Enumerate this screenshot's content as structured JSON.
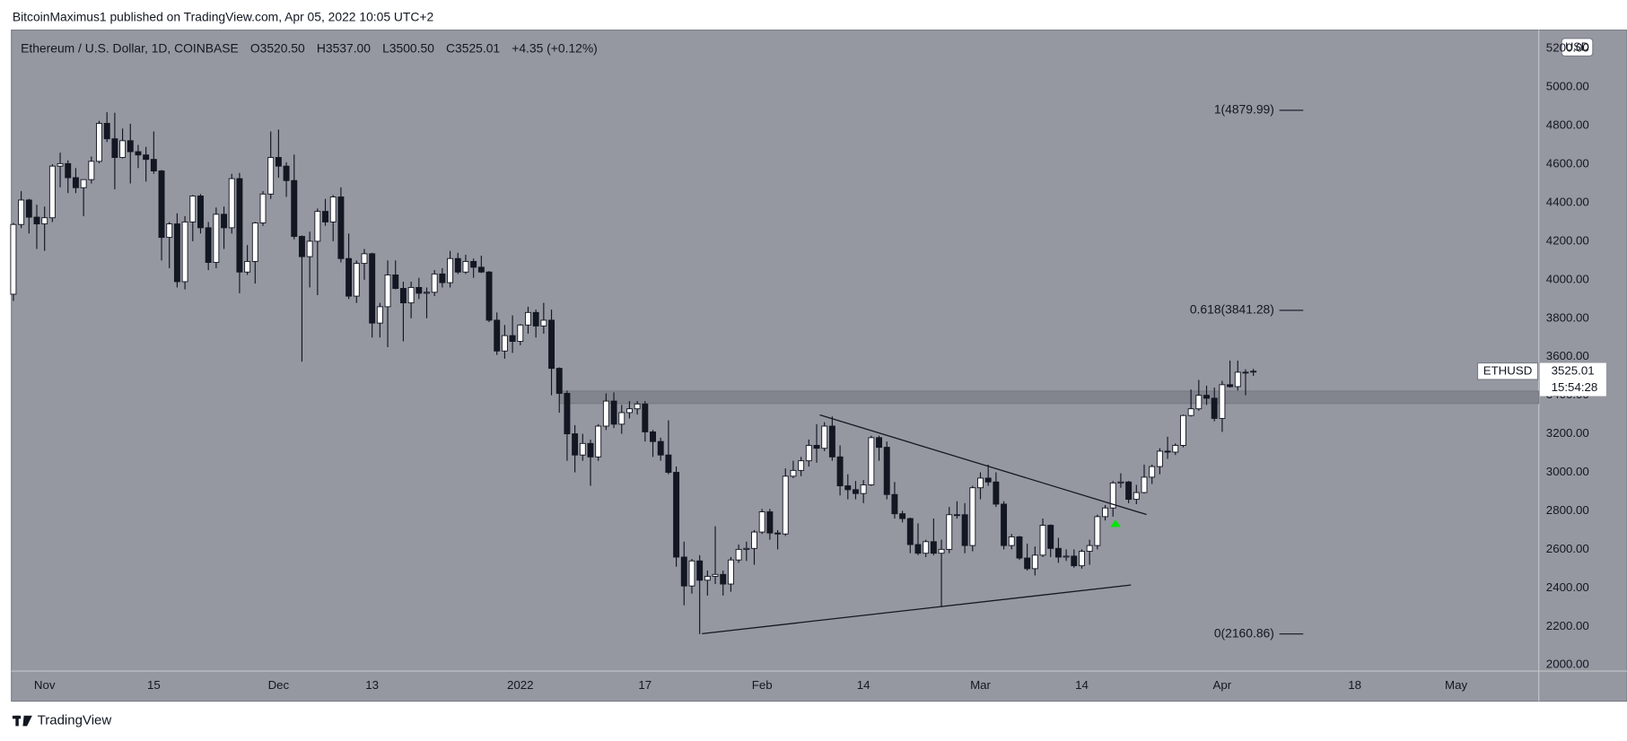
{
  "header": {
    "published": "BitcoinMaximus1 published on TradingView.com, Apr 05, 2022 10:05 UTC+2"
  },
  "footer": {
    "brand": "TradingView"
  },
  "chart_data": {
    "type": "candlestick",
    "legend": {
      "symbol": "Ethereum / U.S. Dollar, 1D, COINBASE",
      "ohlc": [
        {
          "key": "O",
          "value": "3520.50"
        },
        {
          "key": "H",
          "value": "3537.00"
        },
        {
          "key": "L",
          "value": "3500.50"
        },
        {
          "key": "C",
          "value": "3525.01"
        }
      ],
      "change": "+4.35 (+0.12%)"
    },
    "currency": "USD",
    "countdown": "15:54:28",
    "xlim": [
      -4.12,
      191.6
    ],
    "ylim": [
      1968,
      5291
    ],
    "xticks": [
      {
        "value": 0,
        "label": "Nov"
      },
      {
        "value": 14,
        "label": "15"
      },
      {
        "value": 30,
        "label": "Dec"
      },
      {
        "value": 42,
        "label": "13"
      },
      {
        "value": 61,
        "label": "2022"
      },
      {
        "value": 77,
        "label": "17"
      },
      {
        "value": 92,
        "label": "Feb"
      },
      {
        "value": 105,
        "label": "14"
      },
      {
        "value": 120,
        "label": "Mar"
      },
      {
        "value": 133,
        "label": "14"
      },
      {
        "value": 151,
        "label": "Apr"
      },
      {
        "value": 168,
        "label": "18"
      },
      {
        "value": 181,
        "label": "May"
      }
    ],
    "yticks": [
      {
        "value": 2000,
        "label": "2000.00"
      },
      {
        "value": 2200,
        "label": "2200.00"
      },
      {
        "value": 2400,
        "label": "2400.00"
      },
      {
        "value": 2600,
        "label": "2600.00"
      },
      {
        "value": 2800,
        "label": "2800.00"
      },
      {
        "value": 3000,
        "label": "3000.00"
      },
      {
        "value": 3200,
        "label": "3200.00"
      },
      {
        "value": 3400,
        "label": "3400.00"
      },
      {
        "value": 3600,
        "label": "3600.00"
      },
      {
        "value": 3800,
        "label": "3800.00"
      },
      {
        "value": 4000,
        "label": "4000.00"
      },
      {
        "value": 4200,
        "label": "4200.00"
      },
      {
        "value": 4400,
        "label": "4400.00"
      },
      {
        "value": 4600,
        "label": "4600.00"
      },
      {
        "value": 4800,
        "label": "4800.00"
      },
      {
        "value": 5000,
        "label": "5000.00"
      },
      {
        "value": 5200,
        "label": "5200.00"
      }
    ],
    "grid": false,
    "up_color": "#ffffff",
    "down_color": "#131722",
    "series": [
      {
        "name": "ETHUSD",
        "x": [
          -4,
          -3,
          -2,
          -1,
          0,
          1,
          2,
          3,
          4,
          5,
          6,
          7,
          8,
          9,
          10,
          11,
          12,
          13,
          14,
          15,
          16,
          17,
          18,
          19,
          20,
          21,
          22,
          23,
          24,
          25,
          26,
          27,
          28,
          29,
          30,
          31,
          32,
          33,
          34,
          35,
          36,
          37,
          38,
          39,
          40,
          41,
          42,
          43,
          44,
          45,
          46,
          47,
          48,
          49,
          50,
          51,
          52,
          53,
          54,
          55,
          56,
          57,
          58,
          59,
          60,
          61,
          62,
          63,
          64,
          65,
          66,
          67,
          68,
          69,
          70,
          71,
          72,
          73,
          74,
          75,
          76,
          77,
          78,
          79,
          80,
          81,
          82,
          83,
          84,
          85,
          86,
          87,
          88,
          89,
          90,
          91,
          92,
          93,
          94,
          95,
          96,
          97,
          98,
          99,
          100,
          101,
          102,
          103,
          104,
          105,
          106,
          107,
          108,
          109,
          110,
          111,
          112,
          113,
          114,
          115,
          116,
          117,
          118,
          119,
          120,
          121,
          122,
          123,
          124,
          125,
          126,
          127,
          128,
          129,
          130,
          131,
          132,
          133,
          134,
          135,
          136,
          137,
          138,
          139,
          140,
          141,
          142,
          143,
          144,
          145,
          146,
          147,
          148,
          149,
          150,
          151,
          152,
          153,
          154,
          155
        ],
        "open": [
          3925,
          4287,
          4414,
          4325,
          4290,
          4322,
          4590,
          4603,
          4530,
          4478,
          4520,
          4615,
          4812,
          4732,
          4635,
          4722,
          4665,
          4648,
          4625,
          4565,
          4220,
          4290,
          3990,
          4300,
          4435,
          4270,
          4090,
          4340,
          4270,
          4525,
          4040,
          4095,
          4295,
          4445,
          4635,
          4590,
          4515,
          4225,
          4120,
          4200,
          4355,
          4300,
          4430,
          4110,
          3915,
          4085,
          4135,
          3775,
          3860,
          4025,
          3955,
          3880,
          3960,
          3930,
          3935,
          4030,
          3985,
          4110,
          4040,
          4095,
          4065,
          4040,
          3790,
          3630,
          3710,
          3680,
          3765,
          3830,
          3760,
          3790,
          3540,
          3410,
          3200,
          3090,
          3150,
          3080,
          3240,
          3370,
          3250,
          3310,
          3330,
          3355,
          3210,
          3160,
          3090,
          3000,
          2560,
          2410,
          2540,
          2440,
          2460,
          2470,
          2420,
          2545,
          2600,
          2605,
          2690,
          2795,
          2685,
          2680,
          2980,
          3010,
          3060,
          3140,
          3125,
          3240,
          3080,
          2930,
          2910,
          2890,
          2935,
          3180,
          3130,
          2885,
          2785,
          2760,
          2625,
          2580,
          2640,
          2580,
          2600,
          2780,
          2780,
          2620,
          2920,
          2970,
          2950,
          2835,
          2620,
          2665,
          2555,
          2500,
          2570,
          2725,
          2605,
          2560,
          2565,
          2515,
          2590,
          2620,
          2770,
          2815,
          2945,
          2950,
          2860,
          2895,
          2975,
          3030,
          3110,
          3105,
          3140,
          3295,
          3330,
          3400,
          3385,
          3280,
          3455,
          3445,
          3520,
          3520.5
        ],
        "high": [
          4295,
          4460,
          4420,
          4390,
          4380,
          4600,
          4660,
          4620,
          4580,
          4520,
          4640,
          4825,
          4870,
          4867,
          4785,
          4810,
          4700,
          4690,
          4770,
          4570,
          4300,
          4345,
          4330,
          4440,
          4445,
          4300,
          4375,
          4380,
          4550,
          4555,
          4180,
          4300,
          4460,
          4770,
          4780,
          4610,
          4650,
          4230,
          4250,
          4370,
          4420,
          4440,
          4480,
          4240,
          4100,
          4160,
          4140,
          3880,
          4100,
          4100,
          3990,
          3990,
          4010,
          3960,
          4050,
          4060,
          4150,
          4140,
          4130,
          4110,
          4125,
          4045,
          3830,
          3765,
          3815,
          3770,
          3860,
          3845,
          3880,
          3845,
          3545,
          3425,
          3245,
          3200,
          3170,
          3250,
          3410,
          3415,
          3350,
          3370,
          3370,
          3370,
          3220,
          3180,
          3270,
          3030,
          2640,
          2550,
          2570,
          2490,
          2720,
          2490,
          2560,
          2625,
          2640,
          2700,
          2810,
          2810,
          2700,
          3020,
          3060,
          3080,
          3170,
          3250,
          3260,
          3290,
          3140,
          2990,
          2955,
          2960,
          3190,
          3190,
          3160,
          2950,
          2800,
          2765,
          2735,
          2650,
          2760,
          2650,
          2820,
          2850,
          2840,
          2930,
          3000,
          3040,
          3000,
          2850,
          2680,
          2670,
          2630,
          2615,
          2760,
          2730,
          2660,
          2600,
          2600,
          2600,
          2650,
          2780,
          2830,
          2955,
          2995,
          2955,
          2935,
          3040,
          3040,
          3125,
          3185,
          3150,
          3300,
          3430,
          3480,
          3450,
          3440,
          3475,
          3580,
          3580,
          3535,
          3537
        ],
        "low": [
          3890,
          4268,
          4240,
          4160,
          4150,
          4300,
          4480,
          4450,
          4450,
          4330,
          4500,
          4605,
          4715,
          4470,
          4630,
          4500,
          4580,
          4510,
          4550,
          4100,
          4060,
          3960,
          3950,
          4200,
          4240,
          4050,
          4060,
          4160,
          4240,
          3930,
          4025,
          3980,
          4280,
          4420,
          4530,
          4430,
          4210,
          3575,
          3960,
          3920,
          4280,
          4200,
          4090,
          3900,
          3880,
          4000,
          3700,
          3700,
          3650,
          3950,
          3680,
          3800,
          3900,
          3800,
          3915,
          3960,
          3960,
          4030,
          4030,
          4010,
          4035,
          3780,
          3610,
          3590,
          3620,
          3660,
          3720,
          3700,
          3720,
          3400,
          3310,
          3060,
          3000,
          3060,
          2930,
          3060,
          3220,
          3230,
          3200,
          3280,
          3300,
          3160,
          3080,
          3060,
          2990,
          2510,
          2310,
          2370,
          2160,
          2360,
          2420,
          2360,
          2380,
          2530,
          2540,
          2520,
          2680,
          2650,
          2600,
          2670,
          2970,
          2980,
          3030,
          3050,
          3110,
          3060,
          2880,
          2860,
          2860,
          2840,
          2930,
          3060,
          2860,
          2760,
          2740,
          2580,
          2570,
          2560,
          2570,
          2300,
          2580,
          2760,
          2580,
          2590,
          2860,
          2930,
          2820,
          2600,
          2600,
          2545,
          2490,
          2465,
          2560,
          2560,
          2530,
          2540,
          2505,
          2500,
          2520,
          2600,
          2750,
          2770,
          2920,
          2840,
          2835,
          2890,
          2940,
          2990,
          3070,
          3090,
          3130,
          3290,
          3320,
          3350,
          3265,
          3210,
          3440,
          3425,
          3400,
          3500.5
        ],
        "close": [
          4287,
          4414,
          4325,
          4290,
          4322,
          4590,
          4603,
          4530,
          4478,
          4520,
          4615,
          4812,
          4732,
          4635,
          4722,
          4665,
          4648,
          4625,
          4565,
          4220,
          4290,
          3990,
          4300,
          4435,
          4270,
          4090,
          4340,
          4270,
          4525,
          4040,
          4095,
          4295,
          4445,
          4635,
          4590,
          4515,
          4225,
          4120,
          4200,
          4355,
          4300,
          4430,
          4110,
          3915,
          4085,
          4135,
          3775,
          3860,
          4025,
          3955,
          3880,
          3960,
          3930,
          3935,
          4030,
          3985,
          4110,
          4040,
          4095,
          4065,
          4040,
          3790,
          3630,
          3710,
          3680,
          3765,
          3830,
          3760,
          3790,
          3540,
          3410,
          3200,
          3090,
          3150,
          3080,
          3240,
          3370,
          3250,
          3310,
          3330,
          3355,
          3210,
          3160,
          3090,
          3000,
          2560,
          2410,
          2540,
          2440,
          2460,
          2470,
          2420,
          2545,
          2600,
          2605,
          2690,
          2795,
          2685,
          2680,
          2980,
          3010,
          3060,
          3140,
          3125,
          3240,
          3080,
          2930,
          2910,
          2890,
          2935,
          3180,
          3130,
          2885,
          2785,
          2760,
          2625,
          2580,
          2640,
          2580,
          2600,
          2780,
          2780,
          2620,
          2920,
          2970,
          2950,
          2835,
          2620,
          2665,
          2555,
          2500,
          2570,
          2725,
          2605,
          2560,
          2565,
          2515,
          2590,
          2620,
          2770,
          2815,
          2945,
          2950,
          2860,
          2895,
          2975,
          3030,
          3110,
          3105,
          3140,
          3295,
          3330,
          3400,
          3385,
          3280,
          3455,
          3445,
          3520,
          3520,
          3525.01
        ]
      }
    ],
    "fib_levels": [
      {
        "label": "1(4879.99)",
        "value": 4879.99
      },
      {
        "label": "0.618(3841.28)",
        "value": 3841.28
      },
      {
        "label": "0(2160.86)",
        "value": 2160.86
      }
    ],
    "trendlines": [
      [
        [
          99.4,
          3298
        ],
        [
          141.3,
          2781
        ]
      ],
      [
        [
          84.3,
          2162
        ],
        [
          139.3,
          2415
        ]
      ]
    ],
    "zone": {
      "from": 3357,
      "to": 3422,
      "start": 66
    }
  }
}
